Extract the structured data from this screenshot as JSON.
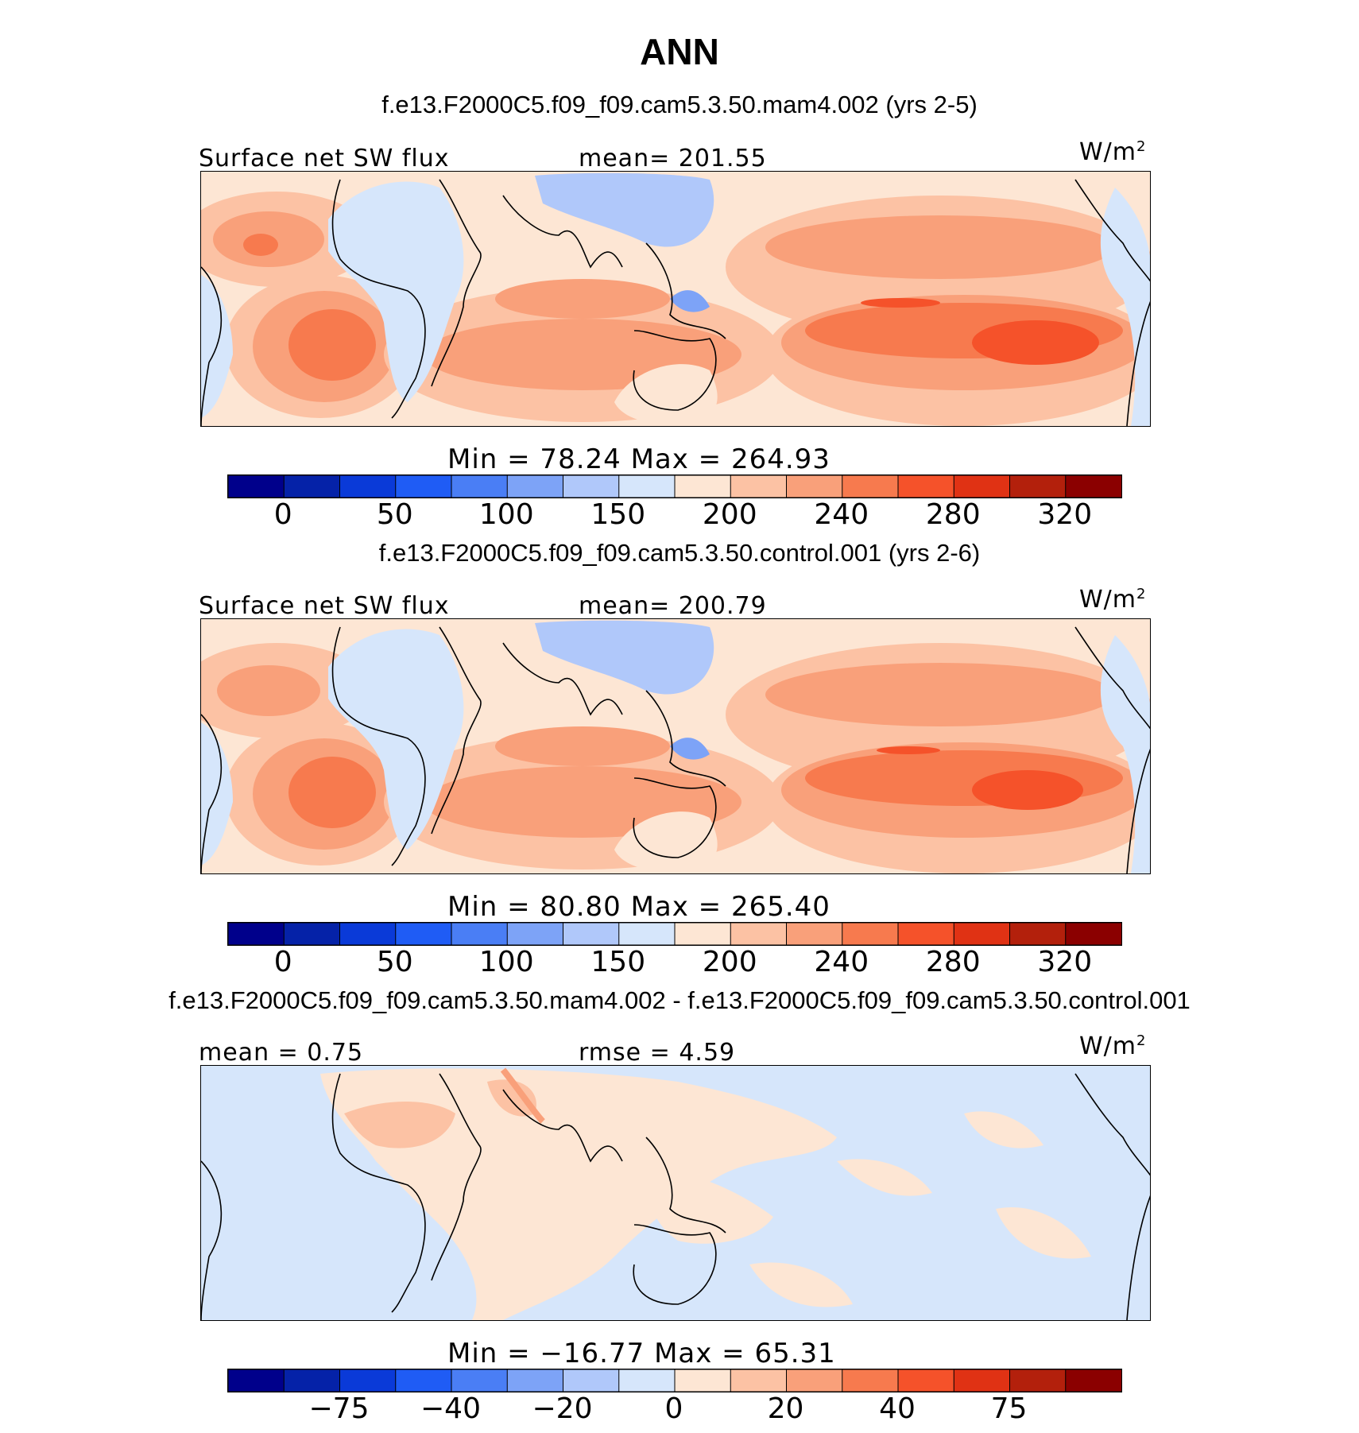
{
  "title": "ANN",
  "panels": [
    {
      "case_title": "f.e13.F2000C5.f09_f09.cam5.3.50.mam4.002 (yrs 2-5)",
      "left_label": "Surface  net  SW  flux",
      "center_label": "mean=  201.55",
      "units": "W/m",
      "units_sup": "2",
      "minmax": "Min  =    78.24  Max  =  264.93",
      "colorbar": {
        "colors": [
          "#00008b",
          "#0522a8",
          "#0a3ad8",
          "#1f5cf5",
          "#4a7ef5",
          "#7da3f7",
          "#b0c8fa",
          "#d6e6fb",
          "#fde6d4",
          "#fcc2a4",
          "#f9a07a",
          "#f77a4e",
          "#f5522a",
          "#e03214",
          "#b3200c",
          "#8b0000"
        ],
        "ticks": [
          "0",
          "50",
          "100",
          "150",
          "200",
          "240",
          "280",
          "320"
        ]
      }
    },
    {
      "case_title": "f.e13.F2000C5.f09_f09.cam5.3.50.control.001 (yrs 2-6)",
      "left_label": "Surface  net  SW  flux",
      "center_label": "mean=  200.79",
      "units": "W/m",
      "units_sup": "2",
      "minmax": "Min  =    80.80  Max  =  265.40",
      "colorbar": {
        "colors": [
          "#00008b",
          "#0522a8",
          "#0a3ad8",
          "#1f5cf5",
          "#4a7ef5",
          "#7da3f7",
          "#b0c8fa",
          "#d6e6fb",
          "#fde6d4",
          "#fcc2a4",
          "#f9a07a",
          "#f77a4e",
          "#f5522a",
          "#e03214",
          "#b3200c",
          "#8b0000"
        ],
        "ticks": [
          "0",
          "50",
          "100",
          "150",
          "200",
          "240",
          "280",
          "320"
        ]
      }
    },
    {
      "case_title": "f.e13.F2000C5.f09_f09.cam5.3.50.mam4.002 - f.e13.F2000C5.f09_f09.cam5.3.50.control.001",
      "left_label": "mean  =     0.75",
      "center_label": "rmse  =     4.59",
      "units": "W/m",
      "units_sup": "2",
      "minmax": "Min  =  −16.77  Max  =    65.31",
      "colorbar": {
        "colors": [
          "#00008b",
          "#0522a8",
          "#0a3ad8",
          "#1f5cf5",
          "#4a7ef5",
          "#7da3f7",
          "#b0c8fa",
          "#d6e6fb",
          "#fde6d4",
          "#fcc2a4",
          "#f9a07a",
          "#f77a4e",
          "#f5522a",
          "#e03214",
          "#b3200c",
          "#8b0000"
        ],
        "ticks": [
          "−75",
          "−40",
          "−20",
          "0",
          "20",
          "40",
          "75"
        ]
      }
    }
  ],
  "palette": {
    "ocean_light": "#fde6d4",
    "ocean_mid": "#fcc2a4",
    "ocean_warm": "#f9a07a",
    "ocean_hot": "#f77a4e",
    "ocean_max": "#f5522a",
    "land_blue": "#d6e6fb",
    "land_blue2": "#b0c8fa",
    "land_blue3": "#7da3f7",
    "diff_bg": "#d6e6fb",
    "diff_pos": "#fde6d4",
    "diff_pos2": "#fcc2a4",
    "diff_pos3": "#f9a07a"
  }
}
